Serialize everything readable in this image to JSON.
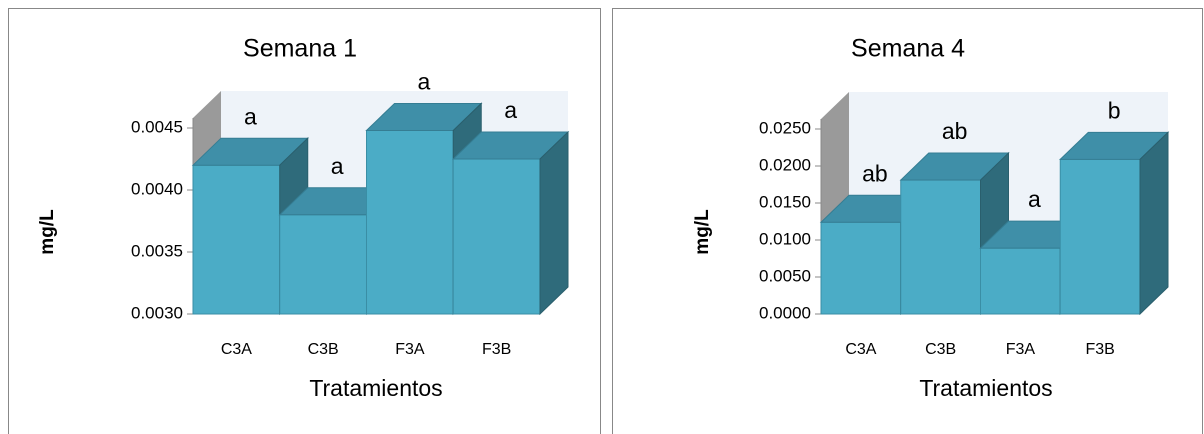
{
  "chart_data": [
    {
      "type": "bar3d",
      "title": "Semana 1",
      "ylabel": "mg/L",
      "xlabel": "Tratamientos",
      "categories": [
        "C3A",
        "C3B",
        "F3A",
        "F3B"
      ],
      "values": [
        0.0042,
        0.0038,
        0.00448,
        0.00425
      ],
      "annotations": [
        "a",
        "a",
        "a",
        "a"
      ],
      "color": "#4bacc6",
      "ylim": [
        0.003,
        0.0045
      ],
      "yticks": [
        {
          "value": 0.003,
          "label": "0.0030"
        },
        {
          "value": 0.0035,
          "label": "0.0035"
        },
        {
          "value": 0.004,
          "label": "0.0040"
        },
        {
          "value": 0.0045,
          "label": "0.0045"
        }
      ]
    },
    {
      "type": "bar3d",
      "title": "Semana 4",
      "ylabel": "mg/L",
      "xlabel": "Tratamientos",
      "categories": [
        "C3A",
        "C3B",
        "F3A",
        "F3B"
      ],
      "values": [
        0.0124,
        0.0181,
        0.0089,
        0.0209
      ],
      "annotations": [
        "ab",
        "ab",
        "a",
        "b"
      ],
      "color": "#4bacc6",
      "ylim": [
        0,
        0.025
      ],
      "yticks": [
        {
          "value": 0,
          "label": "0.0000"
        },
        {
          "value": 0.005,
          "label": "0.0050"
        },
        {
          "value": 0.01,
          "label": "0.0100"
        },
        {
          "value": 0.015,
          "label": "0.0150"
        },
        {
          "value": 0.02,
          "label": "0.0200"
        },
        {
          "value": 0.025,
          "label": "0.0250"
        }
      ]
    }
  ]
}
